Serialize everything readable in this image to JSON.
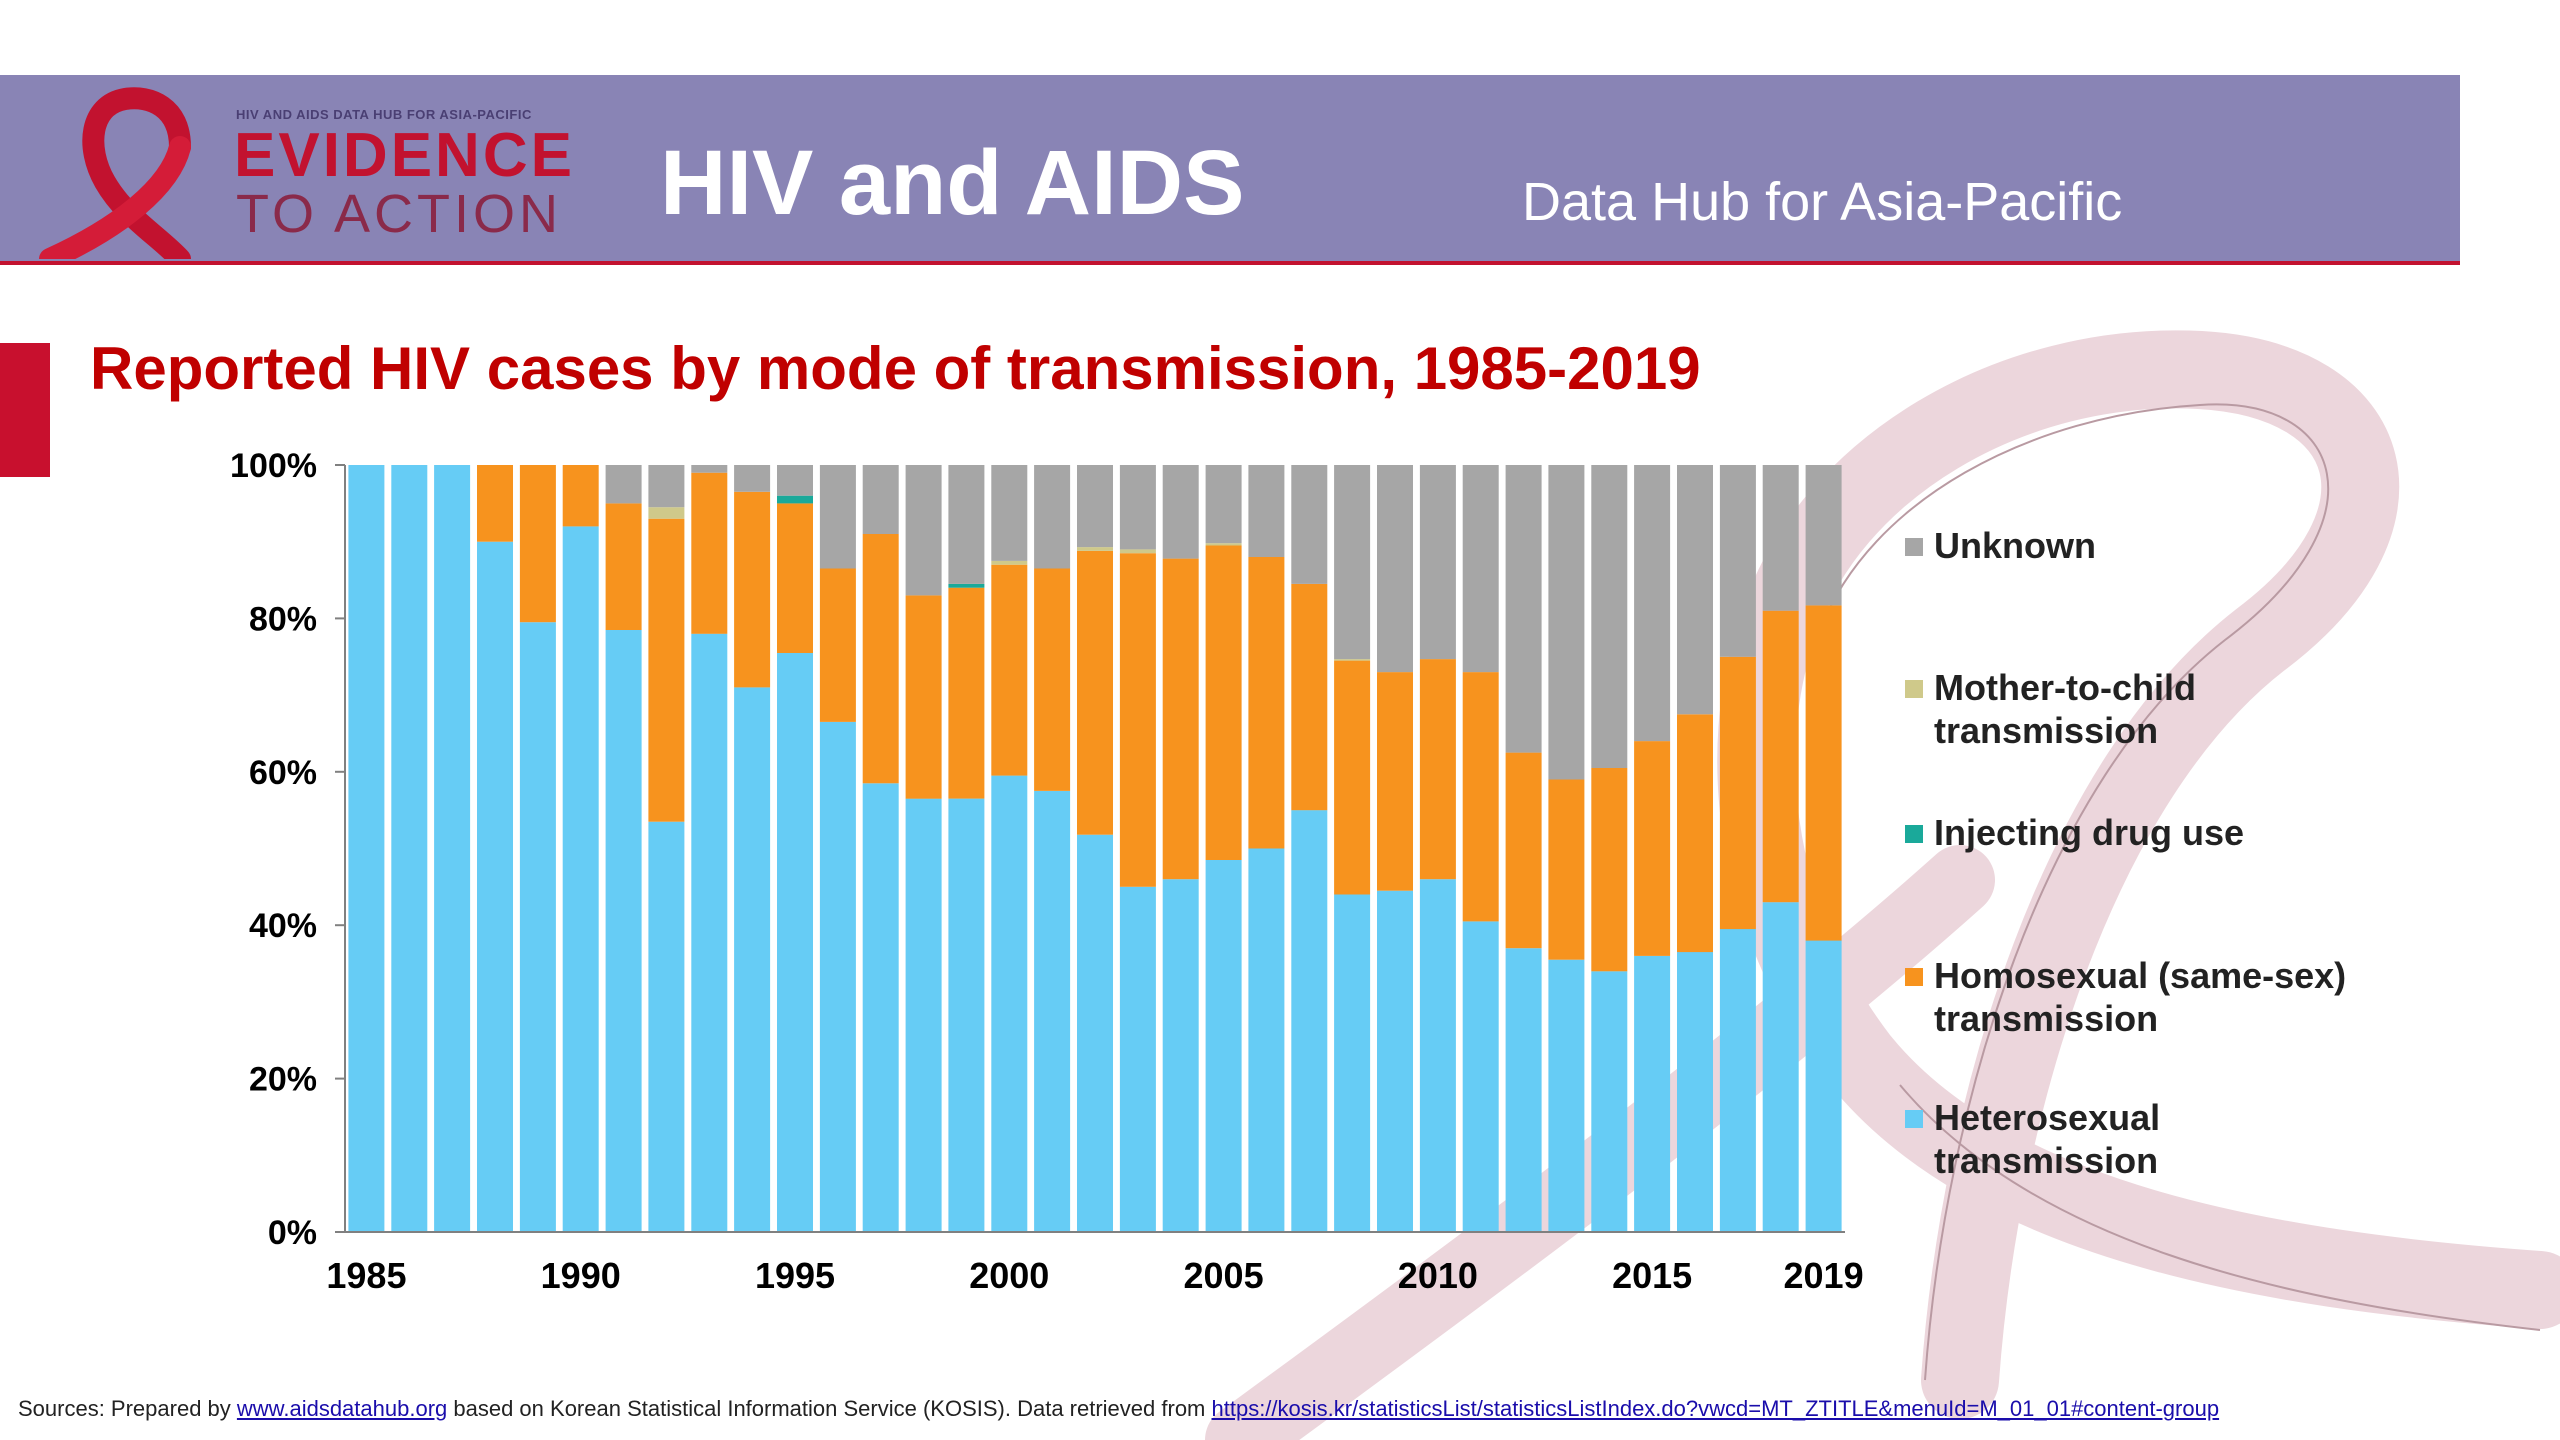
{
  "header": {
    "logo_small": "HIV AND AIDS DATA HUB FOR ASIA-PACIFIC",
    "logo_line1": "EVIDENCE",
    "logo_line2": "TO ACTION",
    "title": "HIV and AIDS",
    "subtitle": "Data Hub for Asia-Pacific"
  },
  "colors": {
    "header_bg": "#8984b5",
    "accent_red": "#c2122f",
    "heterosexual": "#66ccf5",
    "homosexual": "#f7931e",
    "idu": "#1aa99a",
    "mtct": "#cfc98a",
    "unknown": "#a6a6a6"
  },
  "chart_data": {
    "type": "bar",
    "stacked": "percent",
    "title": "Reported HIV cases by mode of transmission, 1985-2019",
    "categories": [
      1985,
      1986,
      1987,
      1988,
      1989,
      1990,
      1991,
      1992,
      1993,
      1994,
      1995,
      1996,
      1997,
      1998,
      1999,
      2000,
      2001,
      2002,
      2003,
      2004,
      2005,
      2006,
      2007,
      2008,
      2009,
      2010,
      2011,
      2012,
      2013,
      2014,
      2015,
      2016,
      2017,
      2018,
      2019
    ],
    "x_tick_labels": [
      "1985",
      "1990",
      "1995",
      "2000",
      "2005",
      "2010",
      "2015",
      "2019"
    ],
    "y_tick_labels": [
      "0%",
      "20%",
      "40%",
      "60%",
      "80%",
      "100%"
    ],
    "ylim": [
      0,
      100
    ],
    "legend_position": "right",
    "series": [
      {
        "name": "Heterosexual transmission",
        "color": "#66ccf5",
        "values": [
          100,
          100,
          100,
          90,
          79.5,
          92,
          78.5,
          53.5,
          78,
          71,
          75.5,
          66.5,
          58.5,
          56.5,
          56.5,
          59.5,
          57.5,
          51.8,
          45,
          46,
          48.5,
          50,
          55,
          44,
          44.5,
          46,
          40.5,
          37,
          35.5,
          34,
          36,
          36.5,
          39.5,
          43,
          38
        ]
      },
      {
        "name": "Homosexual (same-sex) transmission",
        "color": "#f7931e",
        "values": [
          0,
          0,
          0,
          10,
          20.5,
          8,
          16.5,
          39.5,
          21,
          25.5,
          19.5,
          20,
          32.5,
          26.5,
          27.5,
          27.5,
          29,
          37,
          43.5,
          41.8,
          41,
          38,
          29.5,
          30.5,
          28.5,
          28.7,
          32.5,
          25.5,
          23.5,
          26.5,
          28,
          31,
          35.5,
          38,
          43.7
        ]
      },
      {
        "name": "Injecting drug use",
        "color": "#1aa99a",
        "values": [
          0,
          0,
          0,
          0,
          0,
          0,
          0,
          0,
          0,
          0,
          1,
          0,
          0,
          0,
          0.5,
          0,
          0,
          0,
          0,
          0,
          0,
          0,
          0,
          0,
          0,
          0,
          0,
          0,
          0,
          0,
          0,
          0,
          0,
          0,
          0
        ]
      },
      {
        "name": "Mother-to-child transmission",
        "color": "#cfc98a",
        "values": [
          0,
          0,
          0,
          0,
          0,
          0,
          0,
          1.5,
          0,
          0,
          0,
          0,
          0,
          0,
          0,
          0.5,
          0,
          0.5,
          0.5,
          0,
          0.3,
          0,
          0,
          0.2,
          0,
          0,
          0,
          0,
          0,
          0,
          0,
          0,
          0,
          0,
          0
        ]
      },
      {
        "name": "Unknown",
        "color": "#a6a6a6",
        "values": [
          0,
          0,
          0,
          0,
          0,
          0,
          5,
          5.5,
          1,
          3.5,
          4,
          13.5,
          9,
          17,
          15.5,
          12.5,
          13.5,
          10.7,
          11,
          12.2,
          10.2,
          12,
          15.5,
          25.3,
          27,
          25.3,
          27,
          37.5,
          41,
          39.5,
          36,
          32.5,
          25,
          19,
          18.3
        ]
      }
    ],
    "legend_order": [
      "Unknown",
      "Mother-to-child transmission",
      "Injecting drug use",
      "Homosexual (same-sex) transmission",
      "Heterosexual transmission"
    ],
    "legend_lines": [
      [
        "Unknown"
      ],
      [
        "Mother-to-child",
        "transmission"
      ],
      [
        "Injecting drug use"
      ],
      [
        "Homosexual (same-sex)",
        "transmission"
      ],
      [
        "Heterosexual",
        "transmission"
      ]
    ]
  },
  "footer": {
    "prefix": "Sources: Prepared by ",
    "link1": "www.aidsdatahub.org",
    "middle": " based on Korean Statistical Information Service (KOSIS). Data retrieved from ",
    "link2": "https://kosis.kr/statisticsList/statisticsListIndex.do?vwcd=MT_ZTITLE&menuId=M_01_01#content-group"
  }
}
